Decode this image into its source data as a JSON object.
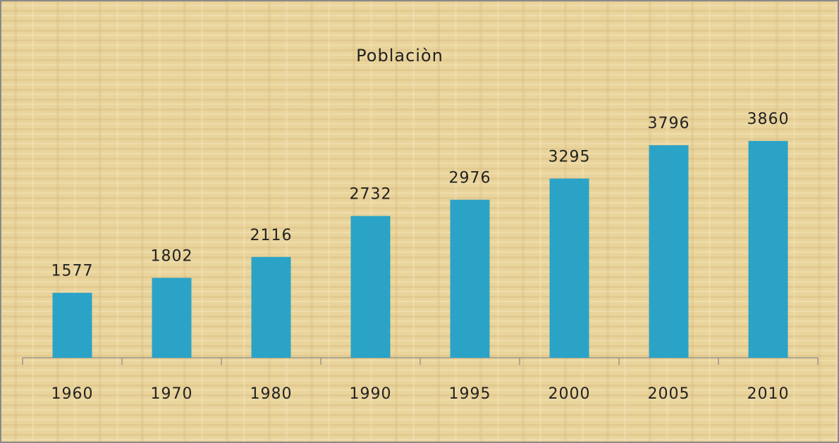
{
  "chart_data": {
    "type": "bar",
    "title": "Poblaciòn",
    "categories": [
      "1960",
      "1970",
      "1980",
      "1990",
      "1995",
      "2000",
      "2005",
      "2010"
    ],
    "values": [
      1577,
      1802,
      2116,
      2732,
      2976,
      3295,
      3796,
      3860
    ],
    "color": "#2ba3c7",
    "ylim": [
      600,
      4200
    ]
  }
}
